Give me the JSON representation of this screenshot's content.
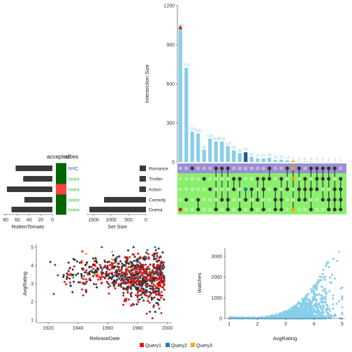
{
  "colors": {
    "bar": "#87CEEB",
    "bar_dark": "#1f5f96",
    "matrix_top": "#9b8fd3",
    "matrix_bg": "#8af06c",
    "dot_active": "#333333",
    "dot_inactive_green": "#b3f5a5",
    "dot_inactive_purple": "#c2b8ea",
    "set_bar": "#3a3a3a",
    "cell_green": "#006400",
    "cell_red": "#ff4040",
    "query1": "#e31a1c",
    "query2": "#1f78b4",
    "query3": "#ffa500"
  },
  "header": {
    "attr_col1": "accepted",
    "attr_col2": "cities"
  },
  "intersection_chart": {
    "type": "bar",
    "ylabel": "Intersection Size",
    "ylim": [
      0,
      1200
    ],
    "yticks": [
      "0",
      "300",
      "600",
      "900",
      "1200"
    ],
    "values": [
      1025,
      723,
      233,
      220,
      95,
      180,
      158,
      158,
      122,
      90,
      68,
      75,
      41,
      27,
      27,
      34,
      15,
      18,
      13,
      5,
      3,
      4,
      4,
      2,
      2,
      2,
      1,
      1
    ],
    "labels": [
      "1025",
      "723",
      "233",
      "220",
      "95",
      "180",
      "158",
      "158",
      "122",
      "90",
      "68",
      "75",
      "41",
      "27",
      "27",
      "34",
      "15",
      "18",
      "13",
      "5",
      "3",
      "4",
      "4",
      "2",
      "2",
      "2",
      "1",
      "1"
    ]
  },
  "set_size_chart": {
    "type": "bar",
    "xlabel": "Set Size",
    "xticks": [
      "1500",
      "1000",
      "500",
      "0"
    ],
    "sets": [
      "Romance",
      "Thriller",
      "Action",
      "Comedy",
      "Drama"
    ],
    "values": [
      180,
      185,
      190,
      1200,
      1620
    ]
  },
  "rotten_chart": {
    "type": "bar",
    "xlabel": "RottenTomato",
    "xticks": [
      "80",
      "60",
      "40",
      "20",
      "0"
    ],
    "values": [
      63,
      50,
      78,
      48,
      70
    ]
  },
  "attr_cells": {
    "col1_colors": [
      "green",
      "green",
      "red",
      "green",
      "green"
    ],
    "col2_labels": [
      "NYC",
      "lostor",
      "lostor",
      "lostor",
      "lostor"
    ]
  },
  "matrix": {
    "columns": [
      [
        "Drama"
      ],
      [
        "Comedy"
      ],
      [
        "Romance"
      ],
      [
        "Comedy",
        "Drama"
      ],
      [
        "Thriller"
      ],
      [
        "Action"
      ],
      [
        "Romance",
        "Drama"
      ],
      [
        "Romance",
        "Comedy"
      ],
      [
        "Romance",
        "Comedy",
        "Drama"
      ],
      [
        "Action",
        "Thriller"
      ],
      [
        "Thriller",
        "Drama"
      ],
      [
        "Action",
        "Comedy"
      ],
      [
        "Action",
        "Drama"
      ],
      [
        "Thriller",
        "Comedy"
      ],
      [
        "Action",
        "Thriller",
        "Drama"
      ],
      [
        "Romance",
        "Thriller"
      ],
      [
        "Action",
        "Comedy",
        "Drama"
      ],
      [
        "Thriller",
        "Comedy",
        "Drama"
      ],
      [
        "Romance",
        "Action"
      ],
      [
        "Romance",
        "Thriller",
        "Drama"
      ],
      [
        "Action",
        "Romance",
        "Comedy"
      ],
      [
        "Action",
        "Thriller",
        "Comedy"
      ],
      [
        "Romance",
        "Action",
        "Drama"
      ],
      [
        "Action",
        "Romance",
        "Thriller"
      ],
      [
        "Comedy",
        "Romance",
        "Thriller"
      ],
      [
        "Thriller",
        "Comedy",
        "Drama",
        "Romance"
      ],
      [
        "Action",
        "Romance",
        "Comedy",
        "Drama"
      ],
      [
        "Action",
        "Thriller",
        "Comedy",
        "Drama"
      ]
    ]
  },
  "scatter_release": {
    "type": "scatter",
    "xlabel": "ReleaseDate",
    "ylabel": "AvgRating",
    "xlim": [
      1912,
      2003
    ],
    "ylim": [
      0.85,
      5.15
    ],
    "xticks": [
      "1920",
      "1940",
      "1960",
      "1980",
      "2000"
    ],
    "yticks": [
      "1",
      "2",
      "3",
      "4",
      "5"
    ]
  },
  "scatter_watches": {
    "type": "scatter",
    "xlabel": "AvgRating",
    "ylabel": "Watches",
    "xlim": [
      0.85,
      5.1
    ],
    "ylim": [
      0,
      3400
    ],
    "xticks": [
      "1",
      "2",
      "3",
      "4",
      "5"
    ],
    "yticks": [
      "0",
      "1000",
      "2000",
      "3000"
    ]
  },
  "legend": {
    "items": [
      {
        "label": "Query1",
        "color": "#e31a1c"
      },
      {
        "label": "Query2",
        "color": "#1f78b4"
      },
      {
        "label": "Query3",
        "color": "#ffa500"
      }
    ]
  }
}
